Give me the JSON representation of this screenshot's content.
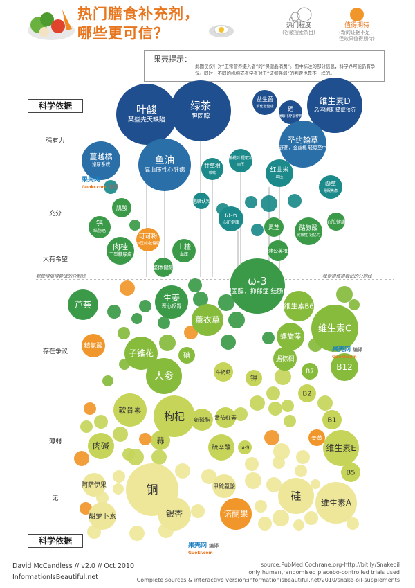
{
  "header": {
    "title_line1": "热门膳食补充剂，",
    "title_line2": "哪些更可信？"
  },
  "legend": {
    "size_label": "热门程度",
    "size_sub": "(谷歌搜索条目)",
    "color_label": "值得期待",
    "color_sub1": "(新的证据不足，",
    "color_sub2": "但效果值得期待)"
  },
  "tip": {
    "title": "果壳提示：",
    "body": "此图仅仅针对“正常营养摄入者”的“保健品消费”。图中标注的部分信息，科学界可能仍有争议。同时，不同的机构或者学者对于“证据强弱”的判定也是不一样的。"
  },
  "axis": {
    "top_box": "科学依据",
    "bottom_box": "科学依据",
    "levels": [
      "强有力",
      "充分",
      "大有希望",
      "存在争议",
      "薄弱",
      "无"
    ],
    "divider_left": "我觉得值得尝试的分割线",
    "divider_right": "我觉得值得尝试的分割线"
  },
  "watermark": {
    "brand": "果壳网",
    "url": "Guokr.com",
    "tag": "编译"
  },
  "footer": {
    "author": "David McCandless // v2.0 // Oct 2010",
    "site": "InformationIsBeautiful.net",
    "source": "source:PubMed,Cochrane.org-http://bit.ly/Snakeoil",
    "note": "only human,randomised placebo-controlled trials used",
    "complete": "Complete sources & interactive version:informationisbeautiful.net/2010/snake-oil-supplements"
  },
  "colors": {
    "strong": "#1f4f8f",
    "medium": "#2a6fa8",
    "teal": "#1c8a8a",
    "green": "#3a9a48",
    "lightgreen": "#86bb3c",
    "yellowgreen": "#c6d55a",
    "paleyellow": "#eee79a",
    "orange": "#f0962a",
    "title": "#e8761e"
  },
  "chart_data": {
    "type": "bubble",
    "title": "热门膳食补充剂，哪些更可信？",
    "ylabel": "科学依据",
    "y_levels": [
      "强有力",
      "充分",
      "大有希望",
      "存在争议",
      "薄弱",
      "无"
    ],
    "bubbles": [
      {
        "name": "叶酸",
        "note": "某些先天缺陷",
        "level": "强有力"
      },
      {
        "name": "绿茶",
        "note": "胆固醇",
        "level": "强有力"
      },
      {
        "name": "益生菌",
        "note": "消化道健康",
        "level": "强有力"
      },
      {
        "name": "硒",
        "note": "缓解化疗副作用",
        "level": "强有力"
      },
      {
        "name": "维生素D",
        "note": "总体健康 癌症预防",
        "level": "强有力"
      },
      {
        "name": "蔓越橘",
        "note": "泌尿系统",
        "level": "强有力"
      },
      {
        "name": "鱼油",
        "note": "高血压性心脏病",
        "level": "强有力"
      },
      {
        "name": "甘草根",
        "note": "咳嗽",
        "level": "强有力"
      },
      {
        "name": "橄榄叶提取物",
        "note": "血压",
        "level": "强有力"
      },
      {
        "name": "圣约翰草",
        "note": "又名贯叶连翘，金丝桃 轻度至中度抑郁症",
        "level": "强有力"
      },
      {
        "name": "红曲米",
        "note": "血压",
        "level": "强有力"
      },
      {
        "name": "缬草",
        "note": "睡眠焦虑",
        "level": "充分"
      },
      {
        "name": "健康认知",
        "note": "",
        "level": "充分"
      },
      {
        "name": "ω-6",
        "note": "心脏健康",
        "level": "充分"
      },
      {
        "name": "肌酸",
        "note": "认知",
        "level": "充分"
      },
      {
        "name": "钙",
        "note": "结肠癌",
        "level": "充分"
      },
      {
        "name": "可可粉",
        "note": "血压/心脏健康",
        "level": "大有希望"
      },
      {
        "name": "肉桂",
        "note": "二型糖尿病",
        "level": "大有希望"
      },
      {
        "name": "山楂",
        "note": "血压",
        "level": "大有希望"
      },
      {
        "name": "整体健康",
        "note": "",
        "level": "大有希望"
      },
      {
        "name": "灵芝",
        "note": "免疫系统",
        "level": "大有希望"
      },
      {
        "name": "酪氨酸",
        "note": "灵敏性 记忆力",
        "level": "大有希望"
      },
      {
        "name": "心脏健康",
        "note": "",
        "level": "大有希望"
      },
      {
        "name": "蒲公英根",
        "note": "新陈代谢综合征",
        "level": "大有希望"
      },
      {
        "name": "ω-3",
        "note": "胆固醇，抑郁症 结肠癌",
        "level": "存在争议"
      },
      {
        "name": "芦荟",
        "note": "",
        "level": "存在争议"
      },
      {
        "name": "生姜",
        "note": "恶心反胃",
        "level": "存在争议"
      },
      {
        "name": "薰衣草",
        "note": "",
        "level": "存在争议"
      },
      {
        "name": "维生素B6",
        "note": "",
        "level": "存在争议"
      },
      {
        "name": "维生素C",
        "note": "",
        "level": "存在争议"
      },
      {
        "name": "螺旋藻",
        "note": "",
        "level": "存在争议"
      },
      {
        "name": "据棕榈",
        "note": "",
        "level": "存在争议"
      },
      {
        "name": "B12",
        "note": "",
        "level": "存在争议"
      },
      {
        "name": "B7",
        "note": "",
        "level": "存在争议"
      },
      {
        "name": "精氨酸",
        "note": "",
        "level": "存在争议"
      },
      {
        "name": "子锥花",
        "note": "",
        "level": "存在争议"
      },
      {
        "name": "人参",
        "note": "",
        "level": "存在争议"
      },
      {
        "name": "碘",
        "note": "",
        "level": "存在争议"
      },
      {
        "name": "钾",
        "note": "",
        "level": "存在争议"
      },
      {
        "name": "牛奶蓟",
        "note": "",
        "level": "存在争议"
      },
      {
        "name": "软骨素",
        "note": "",
        "level": "薄弱"
      },
      {
        "name": "枸杞",
        "note": "",
        "level": "薄弱"
      },
      {
        "name": "卵磷脂",
        "note": "",
        "level": "薄弱"
      },
      {
        "name": "番茄红素",
        "note": "",
        "level": "薄弱"
      },
      {
        "name": "B2",
        "note": "",
        "level": "薄弱"
      },
      {
        "name": "B1",
        "note": "",
        "level": "薄弱"
      },
      {
        "name": "维生素E",
        "note": "",
        "level": "薄弱"
      },
      {
        "name": "B5",
        "note": "",
        "level": "薄弱"
      },
      {
        "name": "肉碱",
        "note": "",
        "level": "薄弱"
      },
      {
        "name": "蒜",
        "note": "",
        "level": "薄弱"
      },
      {
        "name": "硫辛酸",
        "note": "",
        "level": "薄弱"
      },
      {
        "name": "ω-9",
        "note": "",
        "level": "薄弱"
      },
      {
        "name": "姜黄",
        "note": "",
        "level": "薄弱"
      },
      {
        "name": "铜",
        "note": "",
        "level": "无"
      },
      {
        "name": "硅",
        "note": "",
        "level": "无"
      },
      {
        "name": "维生素A",
        "note": "",
        "level": "无"
      },
      {
        "name": "诺丽果",
        "note": "",
        "level": "无"
      },
      {
        "name": "银杏",
        "note": "",
        "level": "无"
      },
      {
        "name": "胡萝卜素",
        "note": "",
        "level": "无"
      },
      {
        "name": "阿萨伊果",
        "note": "",
        "level": "无"
      },
      {
        "name": "甲硫氨酸",
        "note": "",
        "level": "无"
      }
    ]
  }
}
